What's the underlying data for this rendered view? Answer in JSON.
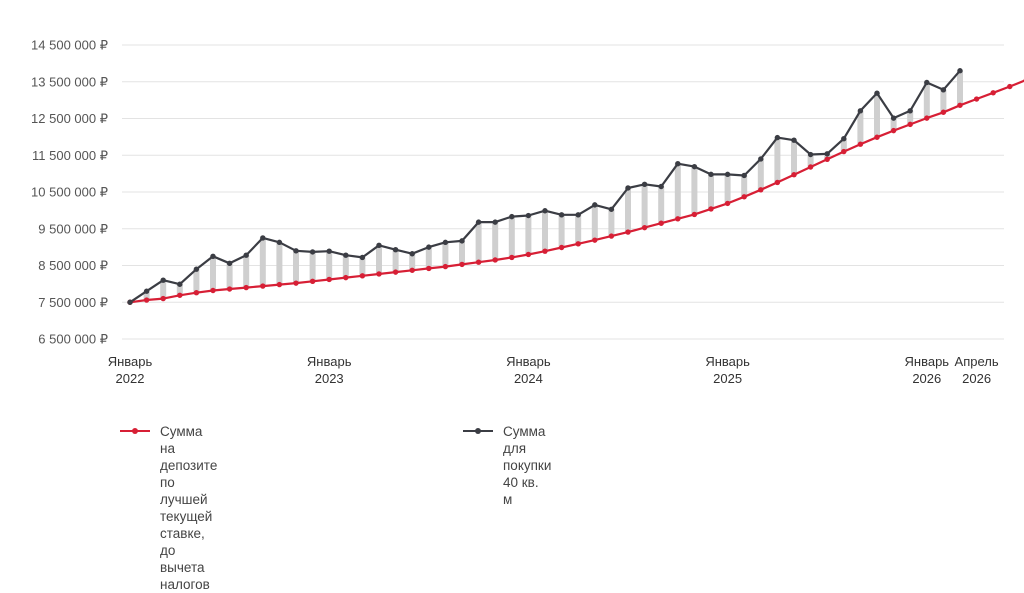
{
  "chart_data": {
    "type": "line",
    "y_tick_labels": [
      "6 500 000 ₽",
      "7 500 000 ₽",
      "8 500 000 ₽",
      "9 500 000 ₽",
      "10 500 000 ₽",
      "11 500 000 ₽",
      "12 500 000 ₽",
      "13 500 000 ₽",
      "14 500 000 ₽"
    ],
    "y_ticks": [
      6500000,
      7500000,
      8500000,
      9500000,
      10500000,
      11500000,
      12500000,
      13500000,
      14500000
    ],
    "ylim": [
      6500000,
      14500000
    ],
    "x_start": "2022-01",
    "x_tick_labels": [
      {
        "month": "2022-01",
        "line1": "Январь",
        "line2": "2022"
      },
      {
        "month": "2023-01",
        "line1": "Январь",
        "line2": "2023"
      },
      {
        "month": "2024-01",
        "line1": "Январь",
        "line2": "2024"
      },
      {
        "month": "2025-01",
        "line1": "Январь",
        "line2": "2025"
      },
      {
        "month": "2026-01",
        "line1": "Январь",
        "line2": "2026"
      },
      {
        "month": "2026-04",
        "line1": "Апрель",
        "line2": "2026"
      }
    ],
    "grid": true,
    "legend_position": "bottom",
    "colors": {
      "deposit": "#d71f35",
      "purchase": "#3b3d44",
      "gap": "#cfcfcf",
      "grid": "#e3e3e3"
    },
    "series": [
      {
        "key": "deposit",
        "name": "Сумма на депозите по лучшей\nтекущей ставке, до вычета налогов",
        "start": "2022-01",
        "values": [
          7500000,
          7560000,
          7600000,
          7690000,
          7760000,
          7820000,
          7860000,
          7900000,
          7940000,
          7980000,
          8020000,
          8070000,
          8120000,
          8170000,
          8220000,
          8270000,
          8320000,
          8370000,
          8420000,
          8470000,
          8530000,
          8590000,
          8650000,
          8720000,
          8800000,
          8890000,
          8990000,
          9090000,
          9190000,
          9300000,
          9410000,
          9530000,
          9650000,
          9770000,
          9890000,
          10040000,
          10190000,
          10370000,
          10560000,
          10760000,
          10970000,
          11180000,
          11390000,
          11600000,
          11800000,
          11990000,
          12170000,
          12340000,
          12510000,
          12670000,
          12860000,
          13030000,
          13200000,
          13370000,
          13550000
        ]
      },
      {
        "key": "purchase",
        "name": "Сумма для покупки 40 кв. м",
        "start": "2022-01",
        "values": [
          7500000,
          7800000,
          8100000,
          7990000,
          8400000,
          8750000,
          8560000,
          8780000,
          9250000,
          9130000,
          8900000,
          8870000,
          8890000,
          8780000,
          8720000,
          9050000,
          8930000,
          8820000,
          9000000,
          9130000,
          9170000,
          9680000,
          9680000,
          9830000,
          9860000,
          9990000,
          9880000,
          9880000,
          10150000,
          10030000,
          10610000,
          10710000,
          10650000,
          11270000,
          11190000,
          10980000,
          10980000,
          10950000,
          11400000,
          11980000,
          11910000,
          11520000,
          11540000,
          11950000,
          12710000,
          13190000,
          12510000,
          12710000,
          13480000,
          13280000,
          13800000
        ]
      }
    ]
  }
}
